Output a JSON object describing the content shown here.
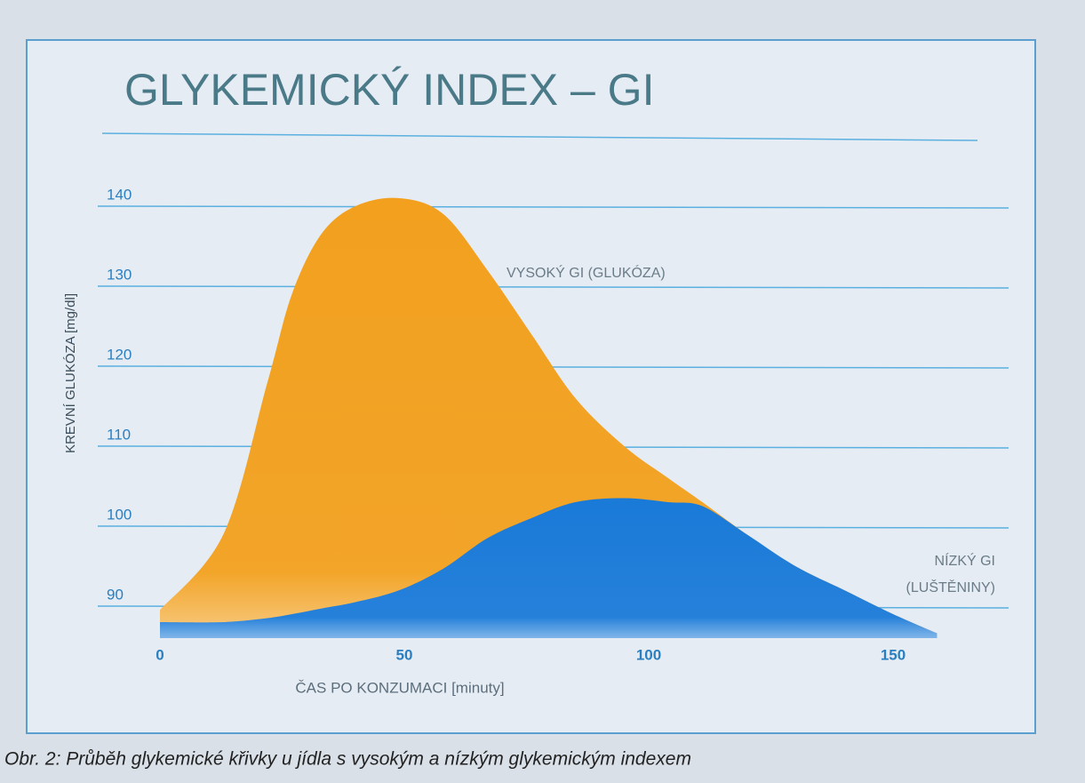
{
  "chart_data": {
    "type": "area",
    "title": "GLYKEMICKÝ INDEX – GI",
    "y_label": "KREVNÍ GLUKÓZA [mg/dl]",
    "x_label": "ČAS PO KONZUMACI [minuty]",
    "caption": "Obr. 2: Průběh glykemické křivky u jídla s vysokým a nízkým glykemickým indexem",
    "annotations": [
      "VYSOKÝ GI  (GLUKÓZA)",
      "NÍZKÝ GI",
      "(LUŠTĚNINY)"
    ],
    "x": [
      0,
      13,
      22,
      27,
      33,
      40,
      49,
      58,
      67,
      76,
      85,
      95,
      104,
      111,
      120,
      130,
      140,
      150,
      159
    ],
    "series": [
      {
        "color": "#f2a01e",
        "values": [
          89.5,
          99,
          118,
          129,
          136.5,
          140,
          141,
          139,
          132,
          124,
          116,
          110,
          106,
          103,
          99,
          95,
          92,
          89,
          86.6
        ]
      },
      {
        "color": "#1a7ad8",
        "values": [
          88,
          88,
          88.5,
          89,
          89.7,
          90.5,
          92,
          94.7,
          98.5,
          101,
          103,
          103.5,
          103,
          102.5,
          99,
          95,
          92,
          89,
          86.6
        ]
      }
    ],
    "xlim": [
      0,
      160
    ],
    "xticks": [
      0,
      50,
      100,
      150
    ],
    "ylim": [
      86,
      150
    ],
    "yticks": [
      90,
      100,
      110,
      120,
      130,
      140
    ],
    "grid": true
  }
}
